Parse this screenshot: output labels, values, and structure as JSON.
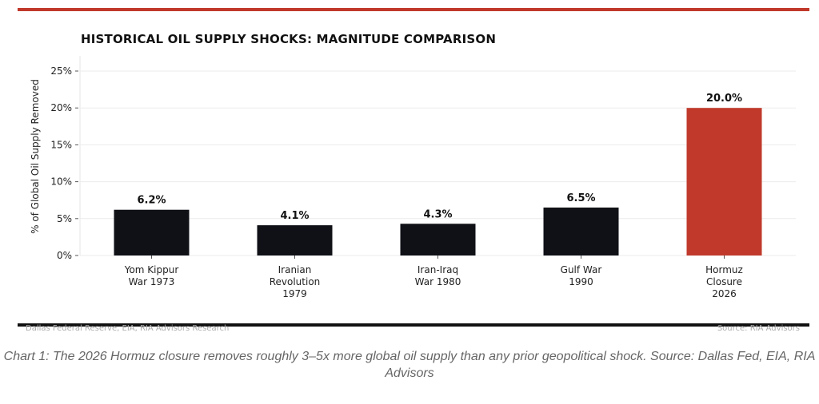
{
  "chart_data": {
    "type": "bar",
    "title": "HISTORICAL OIL SUPPLY SHOCKS: MAGNITUDE COMPARISON",
    "ylabel": "% of Global Oil Supply Removed",
    "xlabel": "",
    "categories": [
      [
        "Yom Kippur",
        "War 1973"
      ],
      [
        "Iranian",
        "Revolution",
        "1979"
      ],
      [
        "Iran-Iraq",
        "War 1980"
      ],
      [
        "Gulf War",
        "1990"
      ],
      [
        "Hormuz",
        "Closure",
        "2026"
      ]
    ],
    "values": [
      6.2,
      4.1,
      4.3,
      6.5,
      20.0
    ],
    "data_labels": [
      "6.2%",
      "4.1%",
      "4.3%",
      "6.5%",
      "20.0%"
    ],
    "colors": [
      "#0f1117",
      "#0f1117",
      "#0f1117",
      "#0f1117",
      "#c0392b"
    ],
    "ylim": [
      0,
      27
    ],
    "yticks": [
      0,
      5,
      10,
      15,
      20,
      25
    ],
    "ytick_labels": [
      "0%",
      "5%",
      "10%",
      "15%",
      "20%",
      "25%"
    ],
    "grid": true
  },
  "footer": {
    "source_left": "Dallas Federal Reserve, EIA, RIA Advisors Research",
    "source_right": "Source: RIA Advisors"
  },
  "caption": "Chart 1: The 2026 Hormuz closure removes roughly 3–5x more global oil supply than any prior geopolitical shock.  Source: Dallas Fed, EIA, RIA Advisors"
}
